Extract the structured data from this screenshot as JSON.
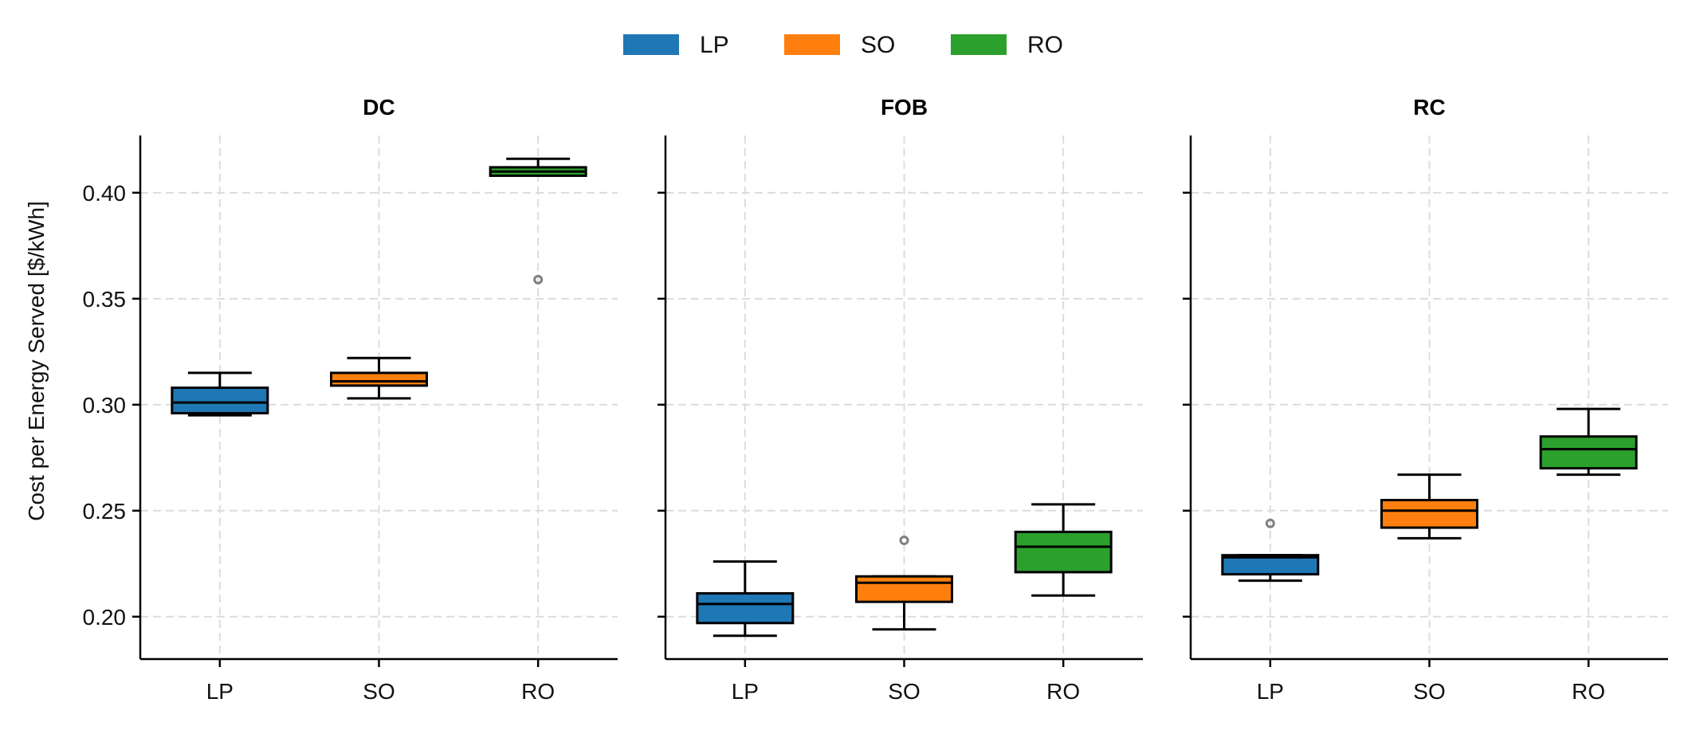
{
  "chart_data": {
    "type": "box",
    "title": "",
    "ylabel": "Cost per Energy Served [$/kWh]",
    "ylim": [
      0.18,
      0.427
    ],
    "yticks": [
      0.2,
      0.25,
      0.3,
      0.35,
      0.4
    ],
    "ytick_labels": [
      "0.20",
      "0.25",
      "0.30",
      "0.35",
      "0.40"
    ],
    "grid": true,
    "sharey": true,
    "legend_position": "top-center",
    "categories": [
      "LP",
      "SO",
      "RO"
    ],
    "colors": {
      "LP": "#1f77b4",
      "SO": "#ff7f0e",
      "RO": "#2ca02c"
    },
    "legend": [
      {
        "label": "LP",
        "color": "#1f77b4"
      },
      {
        "label": "SO",
        "color": "#ff7f0e"
      },
      {
        "label": "RO",
        "color": "#2ca02c"
      }
    ],
    "panels": [
      {
        "title": "DC",
        "boxes": [
          {
            "category": "LP",
            "whisker_low": 0.295,
            "q1": 0.296,
            "median": 0.301,
            "q3": 0.308,
            "whisker_high": 0.315,
            "outliers": []
          },
          {
            "category": "SO",
            "whisker_low": 0.303,
            "q1": 0.309,
            "median": 0.311,
            "q3": 0.315,
            "whisker_high": 0.322,
            "outliers": []
          },
          {
            "category": "RO",
            "whisker_low": 0.408,
            "q1": 0.408,
            "median": 0.41,
            "q3": 0.412,
            "whisker_high": 0.416,
            "outliers": [
              0.359
            ]
          }
        ]
      },
      {
        "title": "FOB",
        "boxes": [
          {
            "category": "LP",
            "whisker_low": 0.191,
            "q1": 0.197,
            "median": 0.206,
            "q3": 0.211,
            "whisker_high": 0.226,
            "outliers": []
          },
          {
            "category": "SO",
            "whisker_low": 0.194,
            "q1": 0.207,
            "median": 0.216,
            "q3": 0.219,
            "whisker_high": 0.219,
            "outliers": [
              0.236
            ]
          },
          {
            "category": "RO",
            "whisker_low": 0.21,
            "q1": 0.221,
            "median": 0.233,
            "q3": 0.24,
            "whisker_high": 0.253,
            "outliers": []
          }
        ]
      },
      {
        "title": "RC",
        "boxes": [
          {
            "category": "LP",
            "whisker_low": 0.217,
            "q1": 0.22,
            "median": 0.228,
            "q3": 0.229,
            "whisker_high": 0.229,
            "outliers": [
              0.244
            ]
          },
          {
            "category": "SO",
            "whisker_low": 0.237,
            "q1": 0.242,
            "median": 0.25,
            "q3": 0.255,
            "whisker_high": 0.267,
            "outliers": []
          },
          {
            "category": "RO",
            "whisker_low": 0.267,
            "q1": 0.27,
            "median": 0.279,
            "q3": 0.285,
            "whisker_high": 0.298,
            "outliers": []
          }
        ]
      }
    ]
  }
}
